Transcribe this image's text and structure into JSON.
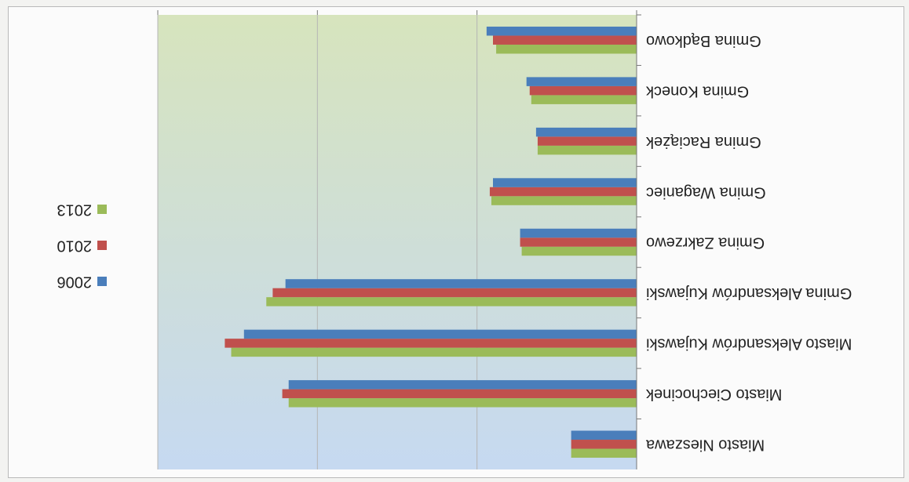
{
  "chart_data": {
    "type": "bar",
    "orientation": "horizontal",
    "rendered_rotation_deg": 180,
    "categories": [
      "Gmina Bądkowo",
      "Gmina Koneck",
      "Gmina Raciążek",
      "Gmina Waganiec",
      "Gmina Zakrzewo",
      "Gmina Aleksandrów Kujawski",
      "Miasto Aleksandrów Kujawski",
      "Miasto Ciechocinek",
      "Miasto Nieszawa"
    ],
    "series": [
      {
        "name": "2006",
        "color": "#4a7ebb",
        "values": [
          4700,
          3450,
          3150,
          4500,
          3650,
          11000,
          12300,
          10900,
          2050
        ]
      },
      {
        "name": "2010",
        "color": "#c0504d",
        "values": [
          4500,
          3350,
          3100,
          4600,
          3650,
          11400,
          12900,
          11100,
          2050
        ]
      },
      {
        "name": "2013",
        "color": "#9bbb59",
        "values": [
          4400,
          3300,
          3100,
          4550,
          3600,
          11600,
          12700,
          10900,
          2050
        ]
      }
    ],
    "xlim": [
      0,
      15000
    ],
    "xticks": [
      "0",
      "5000",
      "10000",
      "15000"
    ],
    "title": "",
    "xlabel": "",
    "ylabel": "",
    "legend_position": "right",
    "background_gradient": [
      "#c6d9f1",
      "#d7e4bd"
    ]
  }
}
